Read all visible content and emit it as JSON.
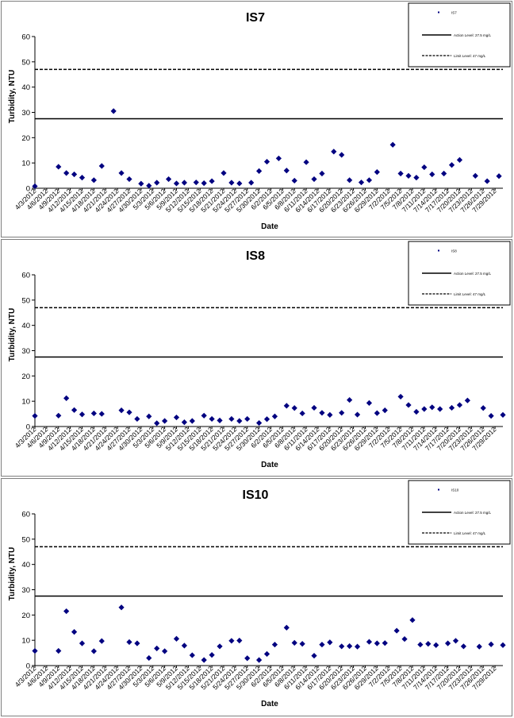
{
  "chart_data": [
    {
      "type": "scatter",
      "title": "IS7",
      "xlabel": "Date",
      "ylabel": "Turbidity, NTU",
      "ylim": [
        0,
        60
      ],
      "yticks": [
        0,
        10,
        20,
        30,
        40,
        50,
        60
      ],
      "grid": false,
      "legend_position": "top-right",
      "x_tick_labels": [
        "4/3/2012",
        "4/6/2012",
        "4/9/2012",
        "4/12/2012",
        "4/15/2012",
        "4/18/2012",
        "4/21/2012",
        "4/24/2012",
        "4/27/2012",
        "4/30/2012",
        "5/3/2012",
        "5/6/2012",
        "5/9/2012",
        "5/12/2012",
        "5/15/2012",
        "5/18/2012",
        "5/21/2012",
        "5/24/2012",
        "5/27/2012",
        "5/30/2012",
        "6/2/2012",
        "6/5/2012",
        "6/8/2012",
        "6/11/2012",
        "6/14/2012",
        "6/17/2012",
        "6/20/2012",
        "6/23/2012",
        "6/26/2012",
        "6/29/2012",
        "7/2/2012",
        "7/5/2012",
        "7/8/2012",
        "7/11/2012",
        "7/14/2012",
        "7/17/2012",
        "7/20/2012",
        "7/23/2012",
        "7/26/2012",
        "7/29/2012"
      ],
      "reference_lines": [
        {
          "name": "Action Level: 27.5 mg/L",
          "value": 27.5,
          "style": "solid"
        },
        {
          "name": "Limit Level: 47 mg/L",
          "value": 47,
          "style": "dashed"
        }
      ],
      "series": [
        {
          "name": "IS7",
          "marker_color": "#000080",
          "points": [
            [
              "4/3/2012",
              0.8
            ],
            [
              "4/9/2012",
              8.5
            ],
            [
              "4/11/2012",
              6
            ],
            [
              "4/13/2012",
              5.5
            ],
            [
              "4/15/2012",
              4.2
            ],
            [
              "4/18/2012",
              3.2
            ],
            [
              "4/20/2012",
              8.8
            ],
            [
              "4/23/2012",
              30.5
            ],
            [
              "4/25/2012",
              6
            ],
            [
              "4/27/2012",
              3.6
            ],
            [
              "4/30/2012",
              1.8
            ],
            [
              "5/2/2012",
              1
            ],
            [
              "5/4/2012",
              2.2
            ],
            [
              "5/7/2012",
              3.6
            ],
            [
              "5/9/2012",
              1.9
            ],
            [
              "5/11/2012",
              2.2
            ],
            [
              "5/14/2012",
              2.3
            ],
            [
              "5/16/2012",
              2
            ],
            [
              "5/18/2012",
              2.8
            ],
            [
              "5/21/2012",
              6
            ],
            [
              "5/23/2012",
              2.2
            ],
            [
              "5/25/2012",
              1.9
            ],
            [
              "5/28/2012",
              2.2
            ],
            [
              "5/30/2012",
              6.8
            ],
            [
              "6/1/2012",
              10.5
            ],
            [
              "6/4/2012",
              11.8
            ],
            [
              "6/6/2012",
              7
            ],
            [
              "6/8/2012",
              3
            ],
            [
              "6/11/2012",
              10.3
            ],
            [
              "6/13/2012",
              3.6
            ],
            [
              "6/15/2012",
              5.8
            ],
            [
              "6/18/2012",
              14.5
            ],
            [
              "6/20/2012",
              13.2
            ],
            [
              "6/22/2012",
              3.2
            ],
            [
              "6/25/2012",
              2.3
            ],
            [
              "6/27/2012",
              3.2
            ],
            [
              "6/29/2012",
              6.4
            ],
            [
              "7/3/2012",
              17.2
            ],
            [
              "7/5/2012",
              5.8
            ],
            [
              "7/7/2012",
              4.9
            ],
            [
              "7/9/2012",
              4.2
            ],
            [
              "7/11/2012",
              8.3
            ],
            [
              "7/13/2012",
              5.5
            ],
            [
              "7/16/2012",
              5.8
            ],
            [
              "7/18/2012",
              9.2
            ],
            [
              "7/20/2012",
              11.2
            ],
            [
              "7/24/2012",
              4.9
            ],
            [
              "7/27/2012",
              2.8
            ],
            [
              "7/30/2012",
              4.8
            ]
          ]
        }
      ]
    },
    {
      "type": "scatter",
      "title": "IS8",
      "xlabel": "Date",
      "ylabel": "Turbidity, NTU",
      "ylim": [
        0,
        60
      ],
      "yticks": [
        0,
        10,
        20,
        30,
        40,
        50,
        60
      ],
      "grid": false,
      "legend_position": "top-right",
      "x_tick_labels": [
        "4/3/2012",
        "4/6/2012",
        "4/9/2012",
        "4/12/2012",
        "4/15/2012",
        "4/18/2012",
        "4/21/2012",
        "4/24/2012",
        "4/27/2012",
        "4/30/2012",
        "5/3/2012",
        "5/6/2012",
        "5/9/2012",
        "5/12/2012",
        "5/15/2012",
        "5/18/2012",
        "5/21/2012",
        "5/24/2012",
        "5/27/2012",
        "5/30/2012",
        "6/2/2012",
        "6/5/2012",
        "6/8/2012",
        "6/11/2012",
        "6/14/2012",
        "6/17/2012",
        "6/20/2012",
        "6/23/2012",
        "6/26/2012",
        "6/29/2012",
        "7/2/2012",
        "7/5/2012",
        "7/8/2012",
        "7/11/2012",
        "7/14/2012",
        "7/17/2012",
        "7/20/2012",
        "7/23/2012",
        "7/26/2012",
        "7/29/2012"
      ],
      "reference_lines": [
        {
          "name": "Action Level: 27.5 mg/L",
          "value": 27.5,
          "style": "solid"
        },
        {
          "name": "Limit Level: 47 mg/L",
          "value": 47,
          "style": "dashed"
        }
      ],
      "series": [
        {
          "name": "IS8",
          "marker_color": "#000080",
          "points": [
            [
              "4/3/2012",
              4.2
            ],
            [
              "4/9/2012",
              4.3
            ],
            [
              "4/11/2012",
              11.2
            ],
            [
              "4/13/2012",
              6.5
            ],
            [
              "4/15/2012",
              4.8
            ],
            [
              "4/18/2012",
              5.2
            ],
            [
              "4/20/2012",
              5
            ],
            [
              "4/25/2012",
              6.4
            ],
            [
              "4/27/2012",
              5.6
            ],
            [
              "4/29/2012",
              3
            ],
            [
              "5/2/2012",
              4
            ],
            [
              "5/4/2012",
              1.3
            ],
            [
              "5/6/2012",
              2.2
            ],
            [
              "5/9/2012",
              3.6
            ],
            [
              "5/11/2012",
              1.7
            ],
            [
              "5/13/2012",
              2.2
            ],
            [
              "5/16/2012",
              4.3
            ],
            [
              "5/18/2012",
              3
            ],
            [
              "5/20/2012",
              2.4
            ],
            [
              "5/23/2012",
              3
            ],
            [
              "5/25/2012",
              2.2
            ],
            [
              "5/27/2012",
              3
            ],
            [
              "5/30/2012",
              1.4
            ],
            [
              "6/1/2012",
              2.9
            ],
            [
              "6/3/2012",
              4
            ],
            [
              "6/6/2012",
              8.2
            ],
            [
              "6/8/2012",
              7.3
            ],
            [
              "6/10/2012",
              5.2
            ],
            [
              "6/13/2012",
              7.4
            ],
            [
              "6/15/2012",
              5.4
            ],
            [
              "6/17/2012",
              4.6
            ],
            [
              "6/20/2012",
              5.4
            ],
            [
              "6/22/2012",
              10.5
            ],
            [
              "6/24/2012",
              4.7
            ],
            [
              "6/27/2012",
              9.3
            ],
            [
              "6/29/2012",
              5.3
            ],
            [
              "7/1/2012",
              6.4
            ],
            [
              "7/5/2012",
              11.8
            ],
            [
              "7/7/2012",
              8.5
            ],
            [
              "7/9/2012",
              5.8
            ],
            [
              "7/11/2012",
              6.9
            ],
            [
              "7/13/2012",
              7.6
            ],
            [
              "7/15/2012",
              6.9
            ],
            [
              "7/18/2012",
              7.4
            ],
            [
              "7/20/2012",
              8.5
            ],
            [
              "7/22/2012",
              10.3
            ],
            [
              "7/26/2012",
              7.3
            ],
            [
              "7/28/2012",
              4.2
            ],
            [
              "7/31/2012",
              4.6
            ]
          ]
        }
      ]
    },
    {
      "type": "scatter",
      "title": "IS10",
      "xlabel": "Date",
      "ylabel": "Turbidity, NTU",
      "ylim": [
        0,
        60
      ],
      "yticks": [
        0,
        10,
        20,
        30,
        40,
        50,
        60
      ],
      "grid": false,
      "legend_position": "top-right",
      "x_tick_labels": [
        "4/3/2012",
        "4/6/2012",
        "4/9/2012",
        "4/12/2012",
        "4/15/2012",
        "4/18/2012",
        "4/21/2012",
        "4/24/2012",
        "4/27/2012",
        "4/30/2012",
        "5/3/2012",
        "5/6/2012",
        "5/9/2012",
        "5/12/2012",
        "5/15/2012",
        "5/18/2012",
        "5/21/2012",
        "5/24/2012",
        "5/27/2012",
        "5/30/2012",
        "6/2/2012",
        "6/5/2012",
        "6/8/2012",
        "6/11/2012",
        "6/14/2012",
        "6/17/2012",
        "6/20/2012",
        "6/23/2012",
        "6/26/2012",
        "6/29/2012",
        "7/2/2012",
        "7/5/2012",
        "7/8/2012",
        "7/11/2012",
        "7/14/2012",
        "7/17/2012",
        "7/20/2012",
        "7/23/2012",
        "7/26/2012",
        "7/29/2012"
      ],
      "reference_lines": [
        {
          "name": "Action Level: 27.5 mg/L",
          "value": 27.5,
          "style": "solid"
        },
        {
          "name": "Limit Level: 47 mg/L",
          "value": 47,
          "style": "dashed"
        }
      ],
      "series": [
        {
          "name": "IS10",
          "marker_color": "#000080",
          "points": [
            [
              "4/3/2012",
              5.8
            ],
            [
              "4/9/2012",
              5.8
            ],
            [
              "4/11/2012",
              21.5
            ],
            [
              "4/13/2012",
              13.3
            ],
            [
              "4/15/2012",
              8.8
            ],
            [
              "4/18/2012",
              5.7
            ],
            [
              "4/20/2012",
              9.7
            ],
            [
              "4/25/2012",
              23
            ],
            [
              "4/27/2012",
              9.3
            ],
            [
              "4/29/2012",
              8.8
            ],
            [
              "5/2/2012",
              3
            ],
            [
              "5/4/2012",
              6.8
            ],
            [
              "5/6/2012",
              5.7
            ],
            [
              "5/9/2012",
              10.6
            ],
            [
              "5/11/2012",
              7.9
            ],
            [
              "5/13/2012",
              4.1
            ],
            [
              "5/16/2012",
              2.2
            ],
            [
              "5/18/2012",
              4.2
            ],
            [
              "5/20/2012",
              7.6
            ],
            [
              "5/23/2012",
              9.8
            ],
            [
              "5/25/2012",
              9.9
            ],
            [
              "5/27/2012",
              2.9
            ],
            [
              "5/30/2012",
              2.2
            ],
            [
              "6/1/2012",
              4.6
            ],
            [
              "6/3/2012",
              8.3
            ],
            [
              "6/6/2012",
              15
            ],
            [
              "6/8/2012",
              9
            ],
            [
              "6/10/2012",
              8.6
            ],
            [
              "6/13/2012",
              3.9
            ],
            [
              "6/15/2012",
              8.3
            ],
            [
              "6/17/2012",
              9.2
            ],
            [
              "6/20/2012",
              7.6
            ],
            [
              "6/22/2012",
              7.7
            ],
            [
              "6/24/2012",
              7.5
            ],
            [
              "6/27/2012",
              9.4
            ],
            [
              "6/29/2012",
              8.8
            ],
            [
              "7/1/2012",
              8.9
            ],
            [
              "7/4/2012",
              13.8
            ],
            [
              "7/6/2012",
              10.5
            ],
            [
              "7/8/2012",
              18
            ],
            [
              "7/10/2012",
              8.3
            ],
            [
              "7/12/2012",
              8.6
            ],
            [
              "7/14/2012",
              8.1
            ],
            [
              "7/17/2012",
              8.8
            ],
            [
              "7/19/2012",
              9.8
            ],
            [
              "7/21/2012",
              7.6
            ],
            [
              "7/25/2012",
              7.5
            ],
            [
              "7/28/2012",
              8.4
            ],
            [
              "7/31/2012",
              8.1
            ]
          ]
        }
      ]
    }
  ]
}
